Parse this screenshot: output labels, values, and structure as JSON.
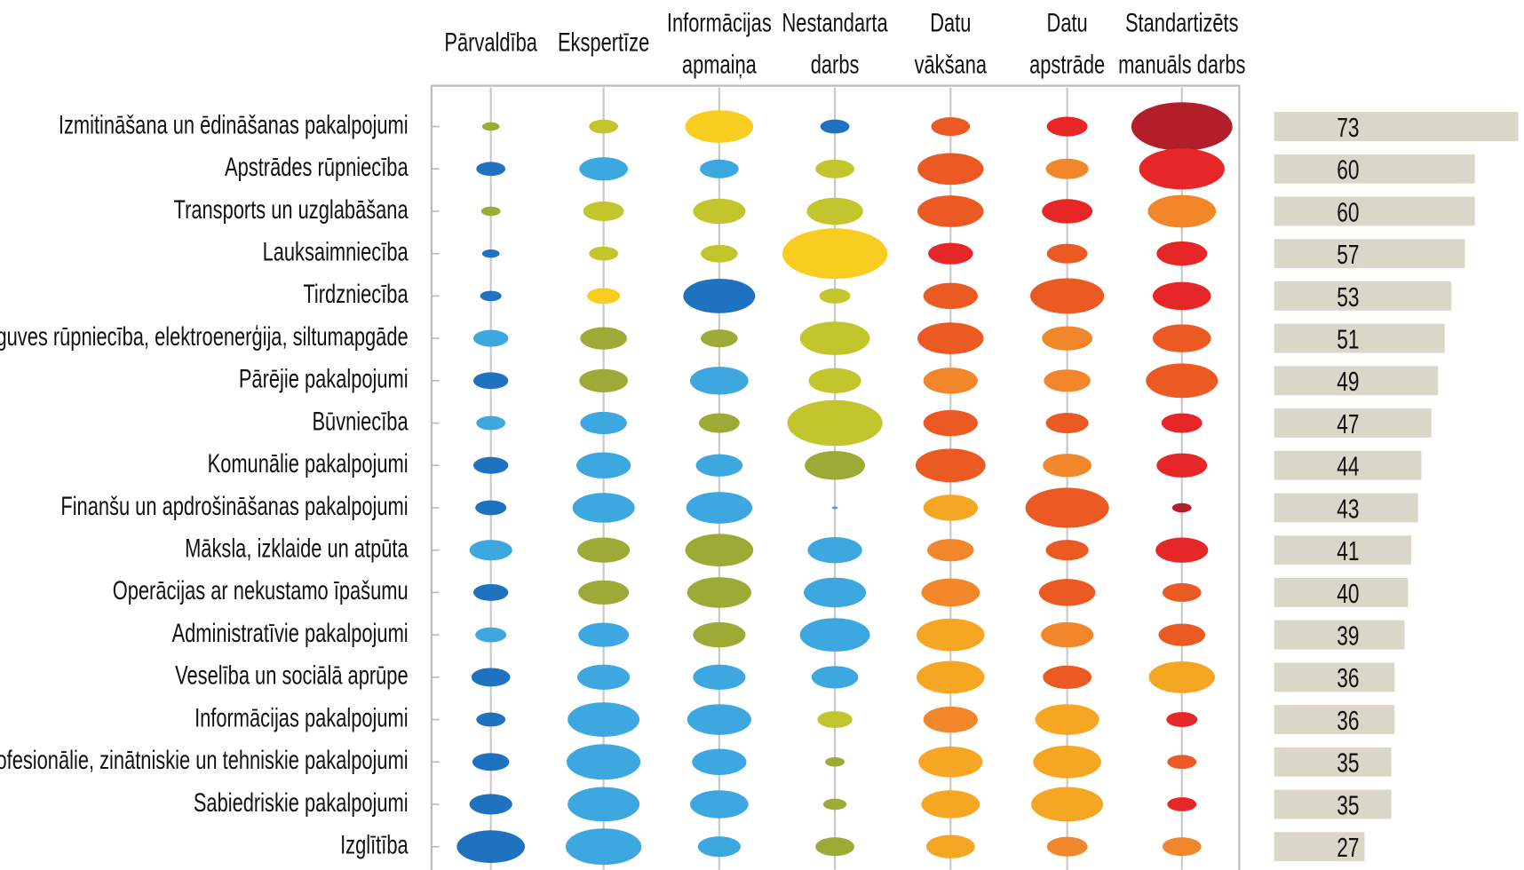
{
  "chart_data": {
    "type": "bubble_matrix",
    "columns": [
      [
        "Pārvaldība"
      ],
      [
        "Ekspertīze"
      ],
      [
        "Informācijas",
        "apmaiņa"
      ],
      [
        "Nestandarta",
        "darbs"
      ],
      [
        "Datu",
        "vākšana"
      ],
      [
        "Datu",
        "apstrāde"
      ],
      [
        "Standartizēts",
        "manuāls darbs"
      ]
    ],
    "rows": [
      "Izmitināšana un ēdināšanas pakalpojumi",
      "Apstrādes rūpniecība",
      "Transports un uzglabāšana",
      "Lauksaimniecība",
      "Tirdzniecība",
      "Ieguves rūpniecība, elektroenerģija, siltumapgāde",
      "Pārējie pakalpojumi",
      "Būvniecība",
      "Komunālie pakalpojumi",
      "Finanšu un apdrošināšanas pakalpojumi",
      "Māksla, izklaide un atpūta",
      "Operācijas ar nekustamo īpašumu",
      "Administratīvie pakalpojumi",
      "Veselība un sociālā aprūpe",
      "Informācijas pakalpojumi",
      "Profesionālie, zinātniskie un tehniskie pakalpojumi",
      "Sabiedriskie pakalpojumi",
      "Izglītība"
    ],
    "sizes": [
      [
        18,
        30,
        70,
        30,
        40,
        42,
        104
      ],
      [
        30,
        50,
        40,
        40,
        68,
        44,
        88
      ],
      [
        20,
        42,
        54,
        58,
        68,
        52,
        70
      ],
      [
        18,
        30,
        38,
        108,
        46,
        42,
        52
      ],
      [
        22,
        34,
        74,
        32,
        56,
        76,
        60
      ],
      [
        36,
        48,
        38,
        72,
        68,
        52,
        60
      ],
      [
        36,
        50,
        60,
        54,
        56,
        48,
        74
      ],
      [
        30,
        48,
        42,
        98,
        56,
        44,
        42
      ],
      [
        36,
        56,
        48,
        62,
        72,
        50,
        52
      ],
      [
        32,
        64,
        68,
        6,
        56,
        86,
        20
      ],
      [
        44,
        54,
        70,
        56,
        48,
        44,
        54
      ],
      [
        36,
        52,
        66,
        64,
        60,
        58,
        40
      ],
      [
        32,
        52,
        54,
        72,
        70,
        54,
        48
      ],
      [
        40,
        54,
        54,
        48,
        70,
        50,
        68
      ],
      [
        30,
        74,
        66,
        36,
        56,
        66,
        32
      ],
      [
        38,
        76,
        56,
        20,
        66,
        70,
        30
      ],
      [
        44,
        74,
        60,
        24,
        60,
        74,
        30
      ],
      [
        70,
        78,
        44,
        40,
        50,
        42,
        40
      ]
    ],
    "colors": [
      [
        "#9bab36",
        "#c3c52c",
        "#f8cd1f",
        "#1f72bf",
        "#ec5a24",
        "#e62627",
        "#b21f2b"
      ],
      [
        "#1f72bf",
        "#3da8e0",
        "#3da8e0",
        "#c3c52c",
        "#ec5a24",
        "#f1872a",
        "#e62627"
      ],
      [
        "#9bab36",
        "#c3c52c",
        "#c3c52c",
        "#c3c52c",
        "#ec5a24",
        "#e62627",
        "#f1872a"
      ],
      [
        "#1f72bf",
        "#c3c52c",
        "#c3c52c",
        "#f8cd1f",
        "#e62627",
        "#ec5a24",
        "#e62627"
      ],
      [
        "#1f72bf",
        "#f8cd1f",
        "#1f72bf",
        "#c3c52c",
        "#ec5a24",
        "#ec5a24",
        "#e62627"
      ],
      [
        "#3da8e0",
        "#9bab36",
        "#9bab36",
        "#c3c52c",
        "#ec5a24",
        "#f1872a",
        "#ec5a24"
      ],
      [
        "#1f72bf",
        "#9bab36",
        "#3da8e0",
        "#c3c52c",
        "#f1872a",
        "#f1872a",
        "#ec5a24"
      ],
      [
        "#3da8e0",
        "#3da8e0",
        "#9bab36",
        "#c3c52c",
        "#ec5a24",
        "#ec5a24",
        "#e62627"
      ],
      [
        "#1f72bf",
        "#3da8e0",
        "#3da8e0",
        "#9bab36",
        "#ec5a24",
        "#f1872a",
        "#e62627"
      ],
      [
        "#1f72bf",
        "#3da8e0",
        "#3da8e0",
        "#3da8e0",
        "#f5a623",
        "#ec5a24",
        "#b21f2b"
      ],
      [
        "#3da8e0",
        "#9bab36",
        "#9bab36",
        "#3da8e0",
        "#f1872a",
        "#ec5a24",
        "#e62627"
      ],
      [
        "#1f72bf",
        "#9bab36",
        "#9bab36",
        "#3da8e0",
        "#f1872a",
        "#ec5a24",
        "#ec5a24"
      ],
      [
        "#3da8e0",
        "#3da8e0",
        "#9bab36",
        "#3da8e0",
        "#f5a623",
        "#f1872a",
        "#ec5a24"
      ],
      [
        "#1f72bf",
        "#3da8e0",
        "#3da8e0",
        "#3da8e0",
        "#f5a623",
        "#ec5a24",
        "#f5a623"
      ],
      [
        "#1f72bf",
        "#3da8e0",
        "#3da8e0",
        "#c3c52c",
        "#f1872a",
        "#f5a623",
        "#e62627"
      ],
      [
        "#1f72bf",
        "#3da8e0",
        "#3da8e0",
        "#9bab36",
        "#f5a623",
        "#f5a623",
        "#ec5a24"
      ],
      [
        "#1f72bf",
        "#3da8e0",
        "#3da8e0",
        "#9bab36",
        "#f5a623",
        "#f5a623",
        "#e62627"
      ],
      [
        "#1f72bf",
        "#3da8e0",
        "#3da8e0",
        "#9bab36",
        "#f5a623",
        "#f1872a",
        "#f1872a"
      ]
    ],
    "values": [
      73,
      60,
      60,
      57,
      53,
      51,
      49,
      47,
      44,
      43,
      41,
      40,
      39,
      36,
      36,
      35,
      35,
      27
    ],
    "bar_color": "#d9d8c8",
    "xlim": [
      0,
      75
    ]
  }
}
